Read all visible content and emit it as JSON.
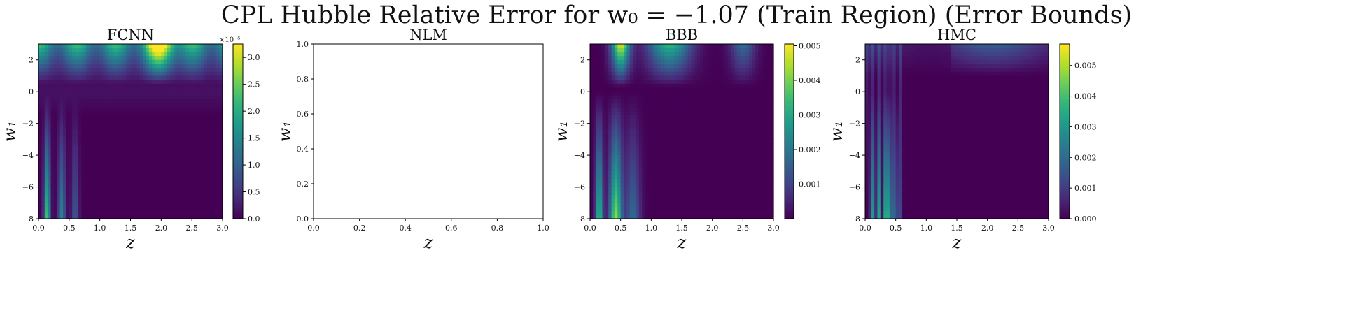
{
  "figure": {
    "title": "CPL Hubble Relative Error for w₀ = −1.07 (Train Region) (Error Bounds)"
  },
  "colormap": {
    "name": "viridis",
    "stops": [
      "#440154",
      "#482878",
      "#3e4989",
      "#31688e",
      "#26828e",
      "#1f9e89",
      "#35b779",
      "#6ece58",
      "#b5de2b",
      "#fde725"
    ]
  },
  "chart_data": [
    {
      "type": "heatmap",
      "title": "FCNN",
      "xlabel": "z",
      "ylabel": "w₁",
      "xlim": [
        0.0,
        3.0
      ],
      "ylim": [
        -8,
        3
      ],
      "xticks": [
        "0.0",
        "0.5",
        "1.0",
        "1.5",
        "2.0",
        "2.5",
        "3.0"
      ],
      "xtick_values": [
        0.0,
        0.5,
        1.0,
        1.5,
        2.0,
        2.5,
        3.0
      ],
      "yticks": [
        "2",
        "0",
        "−2",
        "−4",
        "−6",
        "−8"
      ],
      "ytick_values": [
        2,
        0,
        -2,
        -4,
        -6,
        -8
      ],
      "colorbar": {
        "range": [
          0.0,
          3.25
        ],
        "ticks": [
          "0.0",
          "0.5",
          "1.0",
          "1.5",
          "2.0",
          "2.5",
          "3.0"
        ],
        "tick_values": [
          0.0,
          0.5,
          1.0,
          1.5,
          2.0,
          2.5,
          3.0
        ],
        "multiplier": "×10⁻⁵"
      }
    },
    {
      "type": "heatmap",
      "title": "NLM",
      "xlabel": "z",
      "ylabel": "w₁",
      "xlim": [
        0.0,
        1.0
      ],
      "ylim": [
        0.0,
        1.0
      ],
      "xticks": [
        "0.0",
        "0.2",
        "0.4",
        "0.6",
        "0.8",
        "1.0"
      ],
      "xtick_values": [
        0.0,
        0.2,
        0.4,
        0.6,
        0.8,
        1.0
      ],
      "yticks": [
        "1.0",
        "0.8",
        "0.6",
        "0.4",
        "0.2",
        "0.0"
      ],
      "ytick_values": [
        1.0,
        0.8,
        0.6,
        0.4,
        0.2,
        0.0
      ],
      "empty": true
    },
    {
      "type": "heatmap",
      "title": "BBB",
      "xlabel": "z",
      "ylabel": "w₁",
      "xlim": [
        0.0,
        3.0
      ],
      "ylim": [
        -8,
        3
      ],
      "xticks": [
        "0.0",
        "0.5",
        "1.0",
        "1.5",
        "2.0",
        "2.5",
        "3.0"
      ],
      "xtick_values": [
        0.0,
        0.5,
        1.0,
        1.5,
        2.0,
        2.5,
        3.0
      ],
      "yticks": [
        "2",
        "0",
        "−2",
        "−4",
        "−6",
        "−8"
      ],
      "ytick_values": [
        2,
        0,
        -2,
        -4,
        -6,
        -8
      ],
      "colorbar": {
        "range": [
          0.0,
          0.00505
        ],
        "ticks": [
          "0.005",
          "0.004",
          "0.003",
          "0.002",
          "0.001"
        ],
        "tick_values": [
          0.005,
          0.004,
          0.003,
          0.002,
          0.001
        ]
      }
    },
    {
      "type": "heatmap",
      "title": "HMC",
      "xlabel": "z",
      "ylabel": "w₁",
      "xlim": [
        0.0,
        3.0
      ],
      "ylim": [
        -8,
        3
      ],
      "xticks": [
        "0.0",
        "0.5",
        "1.0",
        "1.5",
        "2.0",
        "2.5",
        "3.0"
      ],
      "xtick_values": [
        0.0,
        0.5,
        1.0,
        1.5,
        2.0,
        2.5,
        3.0
      ],
      "yticks": [
        "2",
        "0",
        "−2",
        "−4",
        "−6",
        "−8"
      ],
      "ytick_values": [
        2,
        0,
        -2,
        -4,
        -6,
        -8
      ],
      "colorbar": {
        "range": [
          0.0,
          0.0057
        ],
        "ticks": [
          "0.005",
          "0.004",
          "0.003",
          "0.002",
          "0.001",
          "0.000"
        ],
        "tick_values": [
          0.005,
          0.004,
          0.003,
          0.002,
          0.001,
          0.0
        ]
      }
    }
  ]
}
